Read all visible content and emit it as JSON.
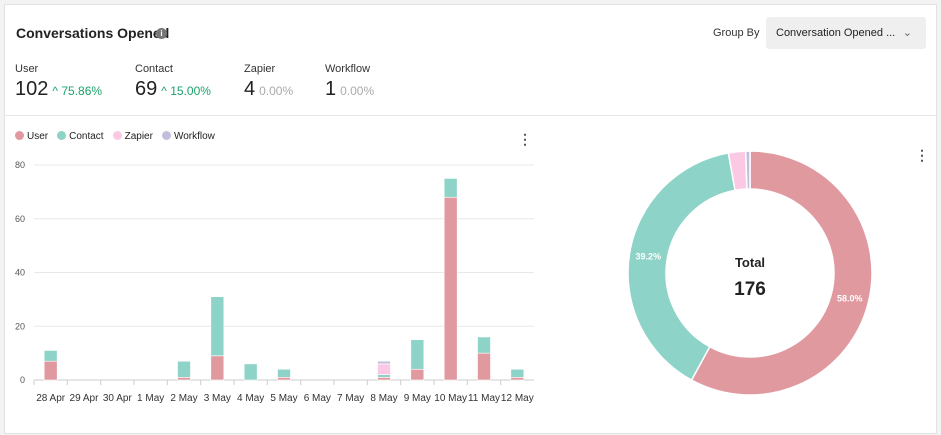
{
  "header": {
    "title": "Conversations Opened",
    "info_icon": "info-icon",
    "group_by_label": "Group By",
    "group_by_value": "Conversation Opened ..."
  },
  "stats": [
    {
      "label": "User",
      "value": "102",
      "change": "75.86%",
      "trend": "up"
    },
    {
      "label": "Contact",
      "value": "69",
      "change": "15.00%",
      "trend": "up"
    },
    {
      "label": "Zapier",
      "value": "4",
      "change": "0.00%",
      "trend": "flat"
    },
    {
      "label": "Workflow",
      "value": "1",
      "change": "0.00%",
      "trend": "flat"
    }
  ],
  "colors": {
    "User": "#e0999f",
    "Contact": "#8dd3c7",
    "Zapier": "#fbc9e3",
    "Workflow": "#c2bedd",
    "up": "#1aa36a"
  },
  "chart_data": [
    {
      "type": "bar",
      "stacked": true,
      "legend": [
        "User",
        "Contact",
        "Zapier",
        "Workflow"
      ],
      "legend_placement": "top-left",
      "grid": true,
      "ylim": [
        0,
        80
      ],
      "yticks": [
        0,
        20,
        40,
        60,
        80
      ],
      "categories": [
        "28 Apr",
        "29 Apr",
        "30 Apr",
        "1 May",
        "2 May",
        "3 May",
        "4 May",
        "5 May",
        "6 May",
        "7 May",
        "8 May",
        "9 May",
        "10 May",
        "11 May",
        "12 May"
      ],
      "series": [
        {
          "name": "User",
          "values": [
            7,
            0,
            0,
            0,
            1,
            9,
            0,
            1,
            0,
            0,
            1,
            4,
            68,
            10,
            1
          ]
        },
        {
          "name": "Contact",
          "values": [
            4,
            0,
            0,
            0,
            6,
            22,
            6,
            3,
            0,
            0,
            1,
            11,
            7,
            6,
            3
          ]
        },
        {
          "name": "Zapier",
          "values": [
            0,
            0,
            0,
            0,
            0,
            0,
            0,
            0,
            0,
            0,
            4,
            0,
            0,
            0,
            0
          ]
        },
        {
          "name": "Workflow",
          "values": [
            0,
            0,
            0,
            0,
            0,
            0,
            0,
            0,
            0,
            0,
            1,
            0,
            0,
            0,
            0
          ]
        }
      ]
    },
    {
      "type": "pie",
      "donut": true,
      "center_label": "Total",
      "center_value": "176",
      "slices": [
        {
          "name": "User",
          "value": 102,
          "label": "58.0%"
        },
        {
          "name": "Contact",
          "value": 69,
          "label": "39.2%"
        },
        {
          "name": "Zapier",
          "value": 4
        },
        {
          "name": "Workflow",
          "value": 1
        }
      ]
    }
  ]
}
